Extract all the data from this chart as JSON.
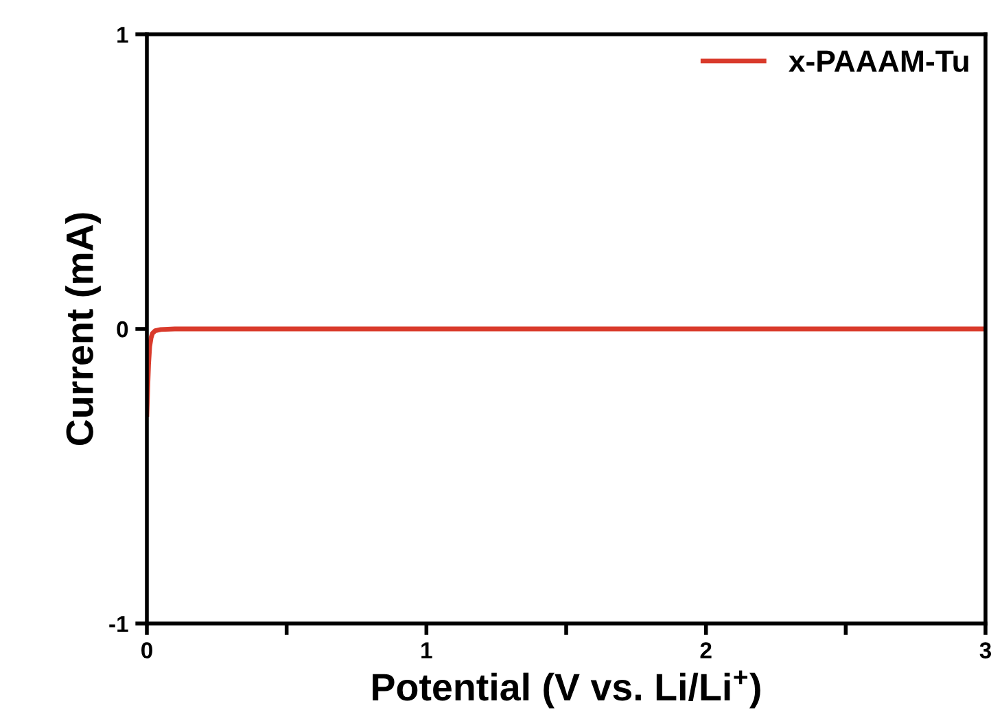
{
  "chart_data": {
    "type": "line",
    "xlabel": "Potential (V vs. Li/Li$^{+}$)",
    "ylabel": "Current (mA)",
    "xlim": [
      0,
      3
    ],
    "ylim": [
      -1,
      1
    ],
    "xticks": [
      0,
      {
        "value": 0.5,
        "label": null
      },
      1,
      {
        "value": 1.5,
        "label": null
      },
      2,
      {
        "value": 2.5,
        "label": null
      },
      3
    ],
    "yticks": [
      -1,
      0,
      1
    ],
    "series": [
      {
        "name": "x-PAAAM-Tu",
        "color": "#d93a2b",
        "x": [
          0,
          0.003,
          0.006,
          0.01,
          0.015,
          0.02,
          0.03,
          0.05,
          0.1,
          0.5,
          1,
          1.5,
          2,
          2.5,
          3
        ],
        "values": [
          -0.29,
          -0.2,
          -0.12,
          -0.06,
          -0.03,
          -0.015,
          -0.006,
          -0.002,
          0,
          0,
          0,
          0,
          0,
          0,
          0
        ]
      }
    ],
    "legend": "top right",
    "grid": false,
    "marker": "none",
    "line_style": "solid"
  }
}
